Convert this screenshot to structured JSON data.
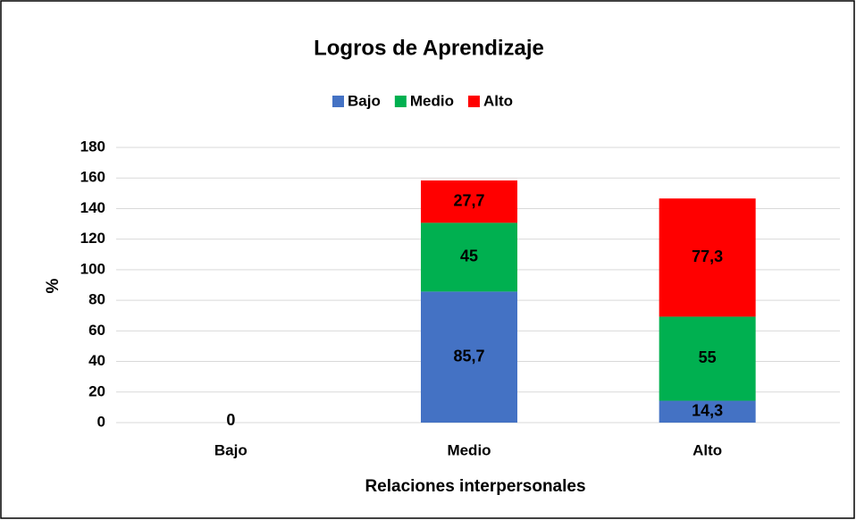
{
  "chart_data": {
    "type": "stacked_bar",
    "title": "Logros de Aprendizaje",
    "x_label": "Relaciones interpersonales",
    "y_label": "%",
    "categories": [
      "Bajo",
      "Medio",
      "Alto"
    ],
    "series": [
      {
        "name": "Bajo",
        "color": "#4472c4",
        "values": [
          0,
          85.7,
          14.3
        ],
        "value_labels": [
          "0",
          "85,7",
          "14,3"
        ]
      },
      {
        "name": "Medio",
        "color": "#00b050",
        "values": [
          null,
          45,
          55
        ],
        "value_labels": [
          null,
          "45",
          "55"
        ]
      },
      {
        "name": "Alto",
        "color": "#ff0000",
        "values": [
          null,
          27.7,
          77.3
        ],
        "value_labels": [
          null,
          "27,7",
          "77,3"
        ]
      }
    ],
    "ylim": [
      0,
      180
    ],
    "yticks": [
      0,
      20,
      40,
      60,
      80,
      100,
      120,
      140,
      160,
      180
    ],
    "grid": true,
    "legend": "top"
  }
}
